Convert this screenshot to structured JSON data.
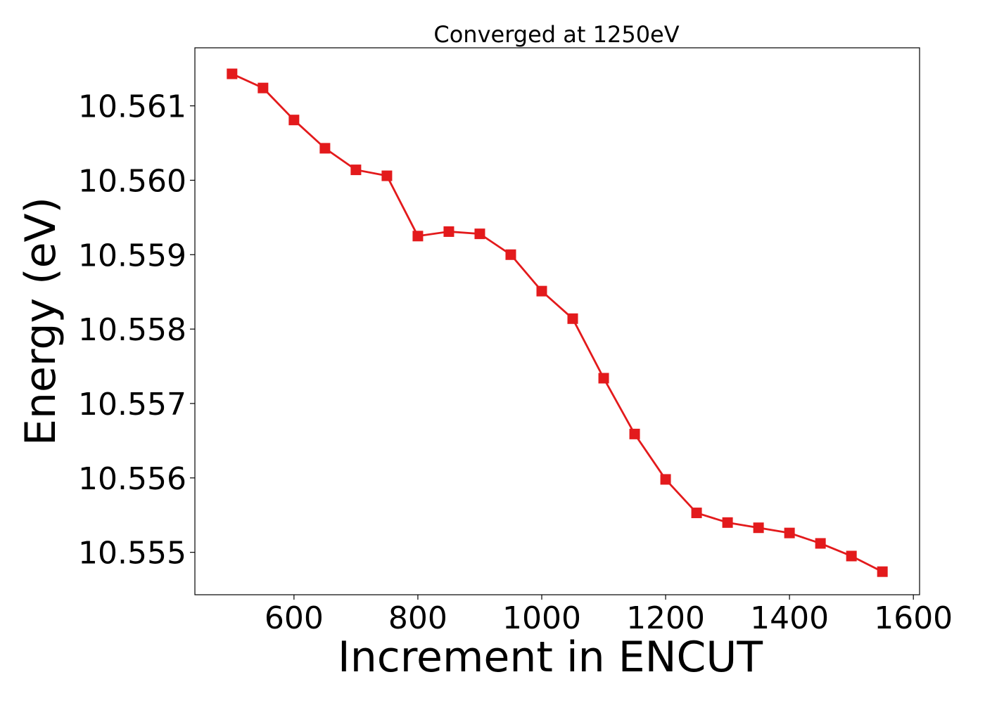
{
  "chart_data": {
    "type": "line",
    "title": "Converged at 1250eV",
    "xlabel": "Increment in ENCUT",
    "ylabel": "Energy (eV)",
    "xlim": [
      440,
      1610
    ],
    "ylim": [
      10.55443,
      10.56178
    ],
    "x_ticks": [
      600,
      800,
      1000,
      1200,
      1400,
      1600
    ],
    "y_ticks": [
      10.555,
      10.556,
      10.557,
      10.558,
      10.559,
      10.56,
      10.561
    ],
    "x_tick_labels": [
      "600",
      "800",
      "1000",
      "1200",
      "1400",
      "1600"
    ],
    "y_tick_labels": [
      "10.555",
      "10.556",
      "10.557",
      "10.558",
      "10.559",
      "10.560",
      "10.561"
    ],
    "grid": false,
    "series": [
      {
        "color": "#e31a1c",
        "marker": "square",
        "x": [
          500,
          550,
          600,
          650,
          700,
          750,
          800,
          850,
          900,
          950,
          1000,
          1050,
          1100,
          1150,
          1200,
          1250,
          1300,
          1350,
          1400,
          1450,
          1500,
          1550
        ],
        "y": [
          10.56143,
          10.56124,
          10.56081,
          10.56043,
          10.56014,
          10.56006,
          10.55925,
          10.55931,
          10.55928,
          10.559,
          10.55851,
          10.55814,
          10.55734,
          10.55659,
          10.55598,
          10.55553,
          10.5554,
          10.55533,
          10.55526,
          10.55512,
          10.55495,
          10.55474
        ]
      }
    ]
  }
}
